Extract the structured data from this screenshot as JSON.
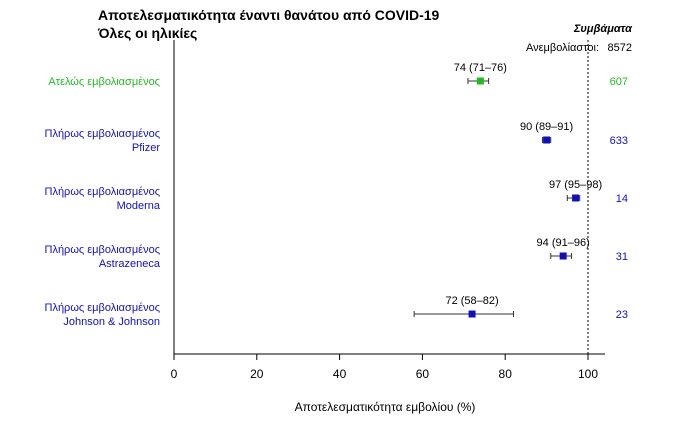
{
  "colors": {
    "partial": "#22bb22",
    "full": "#1111bb",
    "axis": "#000000",
    "reference_line": "#000000"
  },
  "chart_data": {
    "type": "scatter",
    "subtype": "forest-plot",
    "title": "Αποτελεσματικότητα έναντι θανάτου από COVID-19",
    "subtitle": "Όλες οι ηλικίες",
    "xlabel": "Αποτελεσματικότητα εμβολίου (%)",
    "xlim": [
      0,
      104
    ],
    "xticks": [
      0,
      20,
      40,
      60,
      80,
      100
    ],
    "reference_line": 100,
    "cases_header": "Συμβάματα",
    "unvaccinated_label": "Ανεμβολίαστοι:",
    "unvaccinated_count": "8572",
    "grid": false,
    "rows": [
      {
        "label_line1": "Ατελώς εμβολιασμένος",
        "label_line2": "",
        "estimate": 74,
        "lower": 71,
        "upper": 76,
        "ci_text": "74 (71–76)",
        "cases": "607",
        "color_key": "partial"
      },
      {
        "label_line1": "Πλήρως εμβολιασμένος",
        "label_line2": "Pfizer",
        "estimate": 90,
        "lower": 89,
        "upper": 91,
        "ci_text": "90 (89–91)",
        "cases": "633",
        "color_key": "full"
      },
      {
        "label_line1": "Πλήρως εμβολιασμένος",
        "label_line2": "Moderna",
        "estimate": 97,
        "lower": 95,
        "upper": 98,
        "ci_text": "97 (95–98)",
        "cases": "14",
        "color_key": "full"
      },
      {
        "label_line1": "Πλήρως εμβολιασμένος",
        "label_line2": "Astrazeneca",
        "estimate": 94,
        "lower": 91,
        "upper": 96,
        "ci_text": "94 (91–96)",
        "cases": "31",
        "color_key": "full"
      },
      {
        "label_line1": "Πλήρως εμβολιασμένος",
        "label_line2": "Johnson & Johnson",
        "estimate": 72,
        "lower": 58,
        "upper": 82,
        "ci_text": "72 (58–82)",
        "cases": "23",
        "color_key": "full"
      }
    ]
  }
}
